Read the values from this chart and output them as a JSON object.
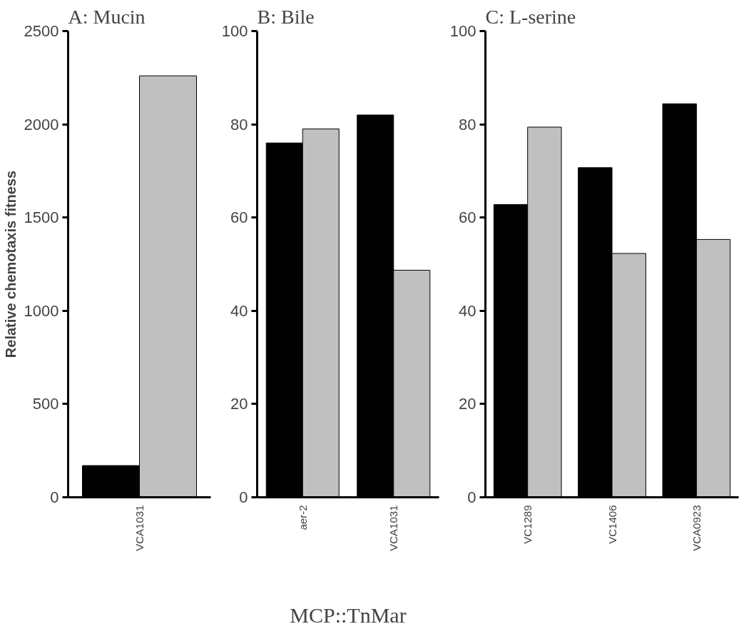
{
  "chart_data": [
    {
      "type": "bar",
      "title": "A:  Mucin",
      "ylabel": "Relative chemotaxis fitness",
      "categories": [
        "VCA1031"
      ],
      "series": [
        {
          "color": "#000000",
          "values": [
            170
          ]
        },
        {
          "color": "#c0c0c0",
          "values": [
            2260
          ]
        }
      ],
      "ylim": [
        0,
        2500
      ],
      "yticks": [
        0,
        500,
        1000,
        1500,
        2000,
        2500
      ]
    },
    {
      "type": "bar",
      "title": "B:  Bile",
      "xlabel": "MCP::TnMar",
      "categories": [
        "aer-2",
        "VCA1031"
      ],
      "series": [
        {
          "color": "#000000",
          "values": [
            76,
            82
          ]
        },
        {
          "color": "#c0c0c0",
          "values": [
            79,
            48.7
          ]
        }
      ],
      "ylim": [
        0,
        100
      ],
      "yticks": [
        0,
        20,
        40,
        60,
        80,
        100
      ]
    },
    {
      "type": "bar",
      "title": "C:  L-serine",
      "categories": [
        "VC1289",
        "VC1406",
        "VCA0923"
      ],
      "series": [
        {
          "color": "#000000",
          "values": [
            62.8,
            70.7,
            84.4
          ]
        },
        {
          "color": "#c0c0c0",
          "values": [
            79.4,
            52.3,
            55.3
          ]
        }
      ],
      "ylim": [
        0,
        100
      ],
      "yticks": [
        0,
        20,
        40,
        60,
        80,
        100
      ]
    }
  ]
}
